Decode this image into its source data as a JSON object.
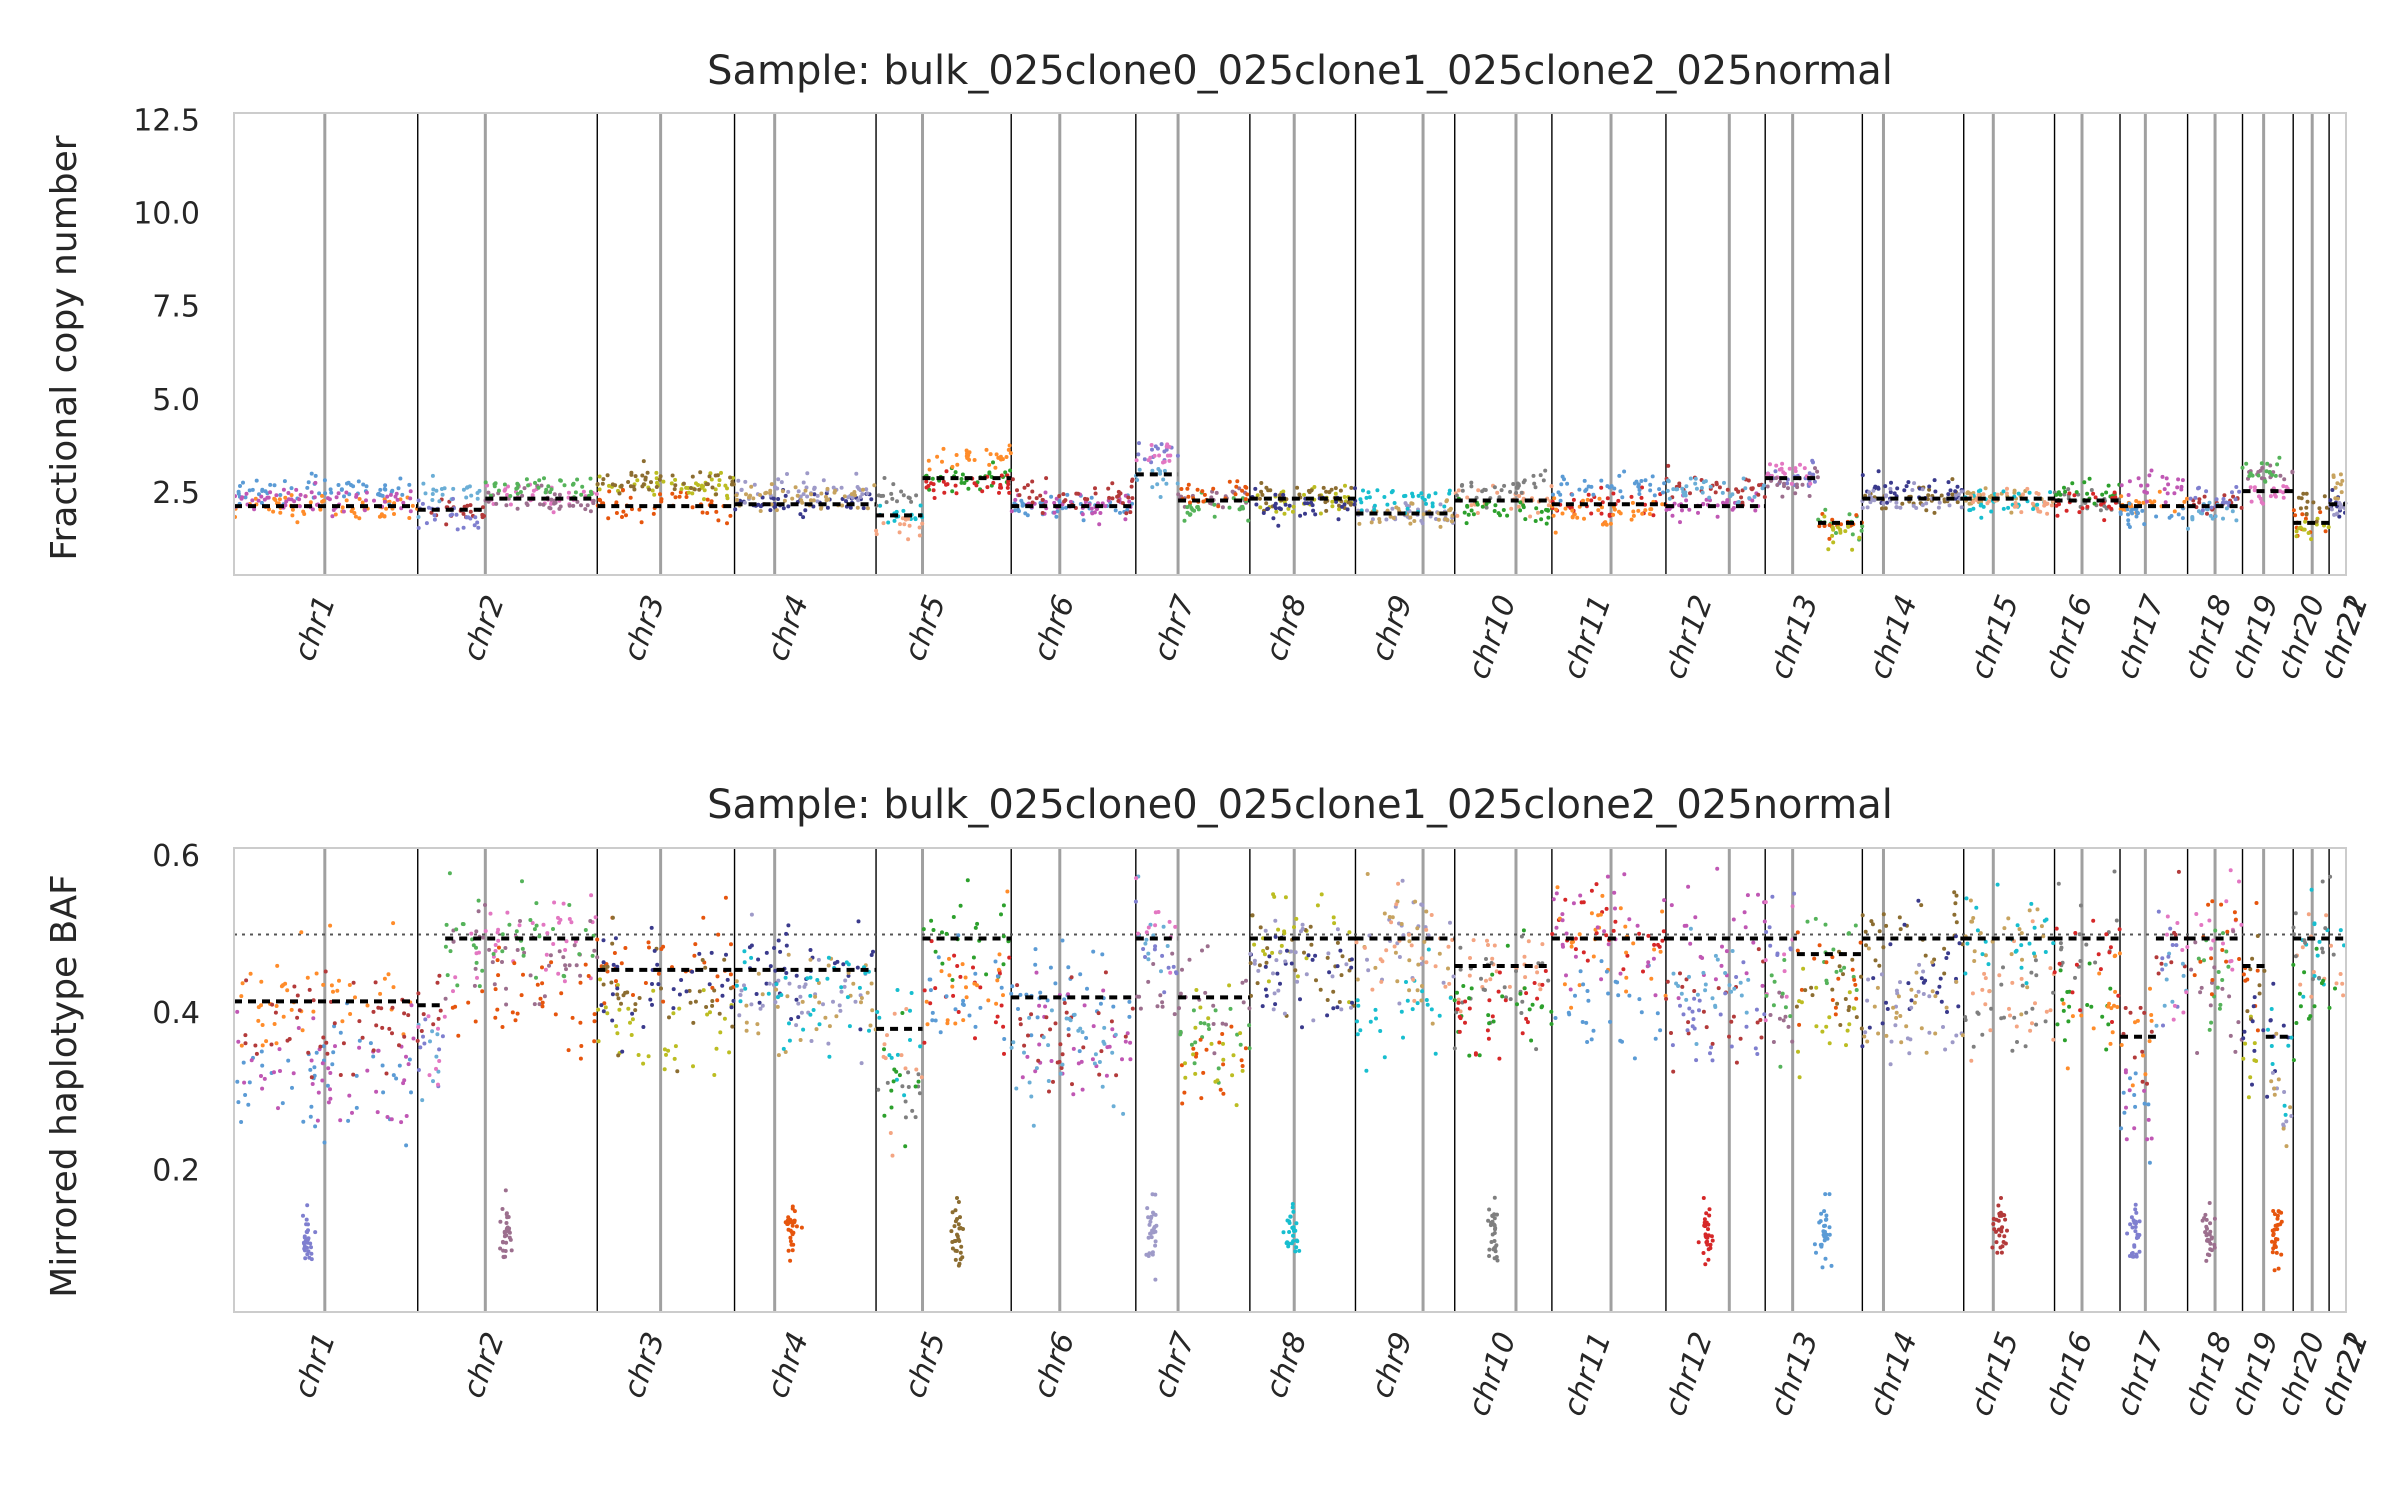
{
  "chart_data": [
    {
      "type": "scatter",
      "title": "Sample: bulk_025clone0_025clone1_025clone2_025normal",
      "ylabel": "Fractional copy number",
      "xlabel": "",
      "ylim": [
        0.3,
        12.7
      ],
      "yticks": [
        "2.5",
        "5.0",
        "7.5",
        "10.0",
        "12.5"
      ],
      "ytick_values": [
        2.5,
        5.0,
        7.5,
        10.0,
        12.5
      ],
      "grid": false,
      "chromosomes": [
        "chr1",
        "chr2",
        "chr3",
        "chr4",
        "chr5",
        "chr6",
        "chr7",
        "chr8",
        "chr9",
        "chr10",
        "chr11",
        "chr12",
        "chr13",
        "chr14",
        "chr15",
        "chr16",
        "chr17",
        "chr18",
        "chr19",
        "chr20",
        "chr21",
        "chr22"
      ],
      "chromosome_label_positions": [
        0.048,
        0.128,
        0.204,
        0.272,
        0.337,
        0.398,
        0.455,
        0.508,
        0.558,
        0.607,
        0.652,
        0.7,
        0.75,
        0.797,
        0.845,
        0.88,
        0.914,
        0.946,
        0.968,
        0.99,
        1.012,
        1.032
      ],
      "chromosome_boundaries": [
        0.0,
        0.087,
        0.172,
        0.237,
        0.304,
        0.368,
        0.427,
        0.481,
        0.531,
        0.578,
        0.624,
        0.678,
        0.725,
        0.771,
        0.819,
        0.862,
        0.893,
        0.925,
        0.951,
        0.975,
        0.992,
        1.0
      ],
      "centromeres": [
        0.043,
        0.119,
        0.202,
        0.256,
        0.326,
        0.391,
        0.447,
        0.502,
        0.563,
        0.607,
        0.652,
        0.708,
        0.738,
        0.781,
        0.833,
        0.875,
        0.905,
        0.938,
        0.961,
        0.984
      ],
      "segments": [
        {
          "x": [
            0.0,
            0.087
          ],
          "y": 2.15
        },
        {
          "x": [
            0.087,
            0.119
          ],
          "y": 2.05
        },
        {
          "x": [
            0.119,
            0.172
          ],
          "y": 2.35
        },
        {
          "x": [
            0.172,
            0.237
          ],
          "y": 2.15
        },
        {
          "x": [
            0.237,
            0.304
          ],
          "y": 2.2
        },
        {
          "x": [
            0.304,
            0.326
          ],
          "y": 1.9
        },
        {
          "x": [
            0.326,
            0.368
          ],
          "y": 2.9
        },
        {
          "x": [
            0.368,
            0.427
          ],
          "y": 2.15
        },
        {
          "x": [
            0.427,
            0.447
          ],
          "y": 3.0
        },
        {
          "x": [
            0.447,
            0.481
          ],
          "y": 2.3
        },
        {
          "x": [
            0.481,
            0.531
          ],
          "y": 2.35
        },
        {
          "x": [
            0.531,
            0.578
          ],
          "y": 1.95
        },
        {
          "x": [
            0.578,
            0.624
          ],
          "y": 2.3
        },
        {
          "x": [
            0.624,
            0.678
          ],
          "y": 2.2
        },
        {
          "x": [
            0.678,
            0.725
          ],
          "y": 2.15
        },
        {
          "x": [
            0.725,
            0.75
          ],
          "y": 2.9
        },
        {
          "x": [
            0.75,
            0.771
          ],
          "y": 1.7
        },
        {
          "x": [
            0.771,
            0.819
          ],
          "y": 2.35
        },
        {
          "x": [
            0.819,
            0.862
          ],
          "y": 2.35
        },
        {
          "x": [
            0.862,
            0.893
          ],
          "y": 2.3
        },
        {
          "x": [
            0.893,
            0.925
          ],
          "y": 2.15
        },
        {
          "x": [
            0.925,
            0.951
          ],
          "y": 2.15
        },
        {
          "x": [
            0.951,
            0.975
          ],
          "y": 2.55
        },
        {
          "x": [
            0.975,
            0.992
          ],
          "y": 1.7
        },
        {
          "x": [
            0.992,
            1.0
          ],
          "y": 2.2
        }
      ]
    },
    {
      "type": "scatter",
      "title": "Sample: bulk_025clone0_025clone1_025clone2_025normal",
      "ylabel": "Mirrored haplotype BAF",
      "xlabel": "",
      "ylim": [
        0.02,
        0.61
      ],
      "yticks": [
        "0.2",
        "0.4",
        "0.6"
      ],
      "ytick_values": [
        0.2,
        0.4,
        0.6
      ],
      "reference_line": 0.5,
      "grid": false,
      "chromosomes": [
        "chr1",
        "chr2",
        "chr3",
        "chr4",
        "chr5",
        "chr6",
        "chr7",
        "chr8",
        "chr9",
        "chr10",
        "chr11",
        "chr12",
        "chr13",
        "chr14",
        "chr15",
        "chr16",
        "chr17",
        "chr18",
        "chr19",
        "chr20",
        "chr21",
        "chr22"
      ],
      "chromosome_label_positions": [
        0.048,
        0.128,
        0.204,
        0.272,
        0.337,
        0.398,
        0.455,
        0.508,
        0.558,
        0.607,
        0.652,
        0.7,
        0.75,
        0.797,
        0.845,
        0.88,
        0.914,
        0.946,
        0.968,
        0.99,
        1.012,
        1.032
      ],
      "chromosome_boundaries": [
        0.0,
        0.087,
        0.172,
        0.237,
        0.304,
        0.368,
        0.427,
        0.481,
        0.531,
        0.578,
        0.624,
        0.678,
        0.725,
        0.771,
        0.819,
        0.862,
        0.893,
        0.925,
        0.951,
        0.975,
        0.992,
        1.0
      ],
      "centromeres": [
        0.043,
        0.119,
        0.202,
        0.256,
        0.326,
        0.391,
        0.447,
        0.502,
        0.563,
        0.607,
        0.652,
        0.708,
        0.738,
        0.781,
        0.833,
        0.875,
        0.905,
        0.938,
        0.961,
        0.984
      ],
      "segments": [
        {
          "x": [
            0.0,
            0.087
          ],
          "y": 0.415
        },
        {
          "x": [
            0.087,
            0.1
          ],
          "y": 0.41
        },
        {
          "x": [
            0.1,
            0.172
          ],
          "y": 0.495
        },
        {
          "x": [
            0.172,
            0.237
          ],
          "y": 0.455
        },
        {
          "x": [
            0.237,
            0.304
          ],
          "y": 0.455
        },
        {
          "x": [
            0.304,
            0.326
          ],
          "y": 0.38
        },
        {
          "x": [
            0.326,
            0.368
          ],
          "y": 0.495
        },
        {
          "x": [
            0.368,
            0.427
          ],
          "y": 0.42
        },
        {
          "x": [
            0.427,
            0.447
          ],
          "y": 0.495
        },
        {
          "x": [
            0.447,
            0.481
          ],
          "y": 0.42
        },
        {
          "x": [
            0.481,
            0.531
          ],
          "y": 0.495
        },
        {
          "x": [
            0.531,
            0.578
          ],
          "y": 0.495
        },
        {
          "x": [
            0.578,
            0.624
          ],
          "y": 0.46
        },
        {
          "x": [
            0.624,
            0.678
          ],
          "y": 0.495
        },
        {
          "x": [
            0.678,
            0.725
          ],
          "y": 0.495
        },
        {
          "x": [
            0.725,
            0.74
          ],
          "y": 0.495
        },
        {
          "x": [
            0.74,
            0.771
          ],
          "y": 0.475
        },
        {
          "x": [
            0.771,
            0.819
          ],
          "y": 0.495
        },
        {
          "x": [
            0.819,
            0.862
          ],
          "y": 0.495
        },
        {
          "x": [
            0.862,
            0.893
          ],
          "y": 0.495
        },
        {
          "x": [
            0.893,
            0.91
          ],
          "y": 0.37
        },
        {
          "x": [
            0.91,
            0.925
          ],
          "y": 0.495
        },
        {
          "x": [
            0.925,
            0.951
          ],
          "y": 0.495
        },
        {
          "x": [
            0.951,
            0.962
          ],
          "y": 0.46
        },
        {
          "x": [
            0.962,
            0.975
          ],
          "y": 0.37
        },
        {
          "x": [
            0.975,
            1.0
          ],
          "y": 0.495
        }
      ]
    }
  ],
  "palette": [
    "#ff8c2a",
    "#5b9bd5",
    "#c057b4",
    "#b33a3a",
    "#6baed6",
    "#7f7fcf",
    "#e377c2",
    "#9c6f8e",
    "#55b35a",
    "#e6550d",
    "#bcbd22",
    "#8c6d31",
    "#3a3a8c",
    "#9e9ac8",
    "#c7a35f",
    "#17becf",
    "#f4a582",
    "#7f7f7f",
    "#2ca02c",
    "#d62728"
  ]
}
